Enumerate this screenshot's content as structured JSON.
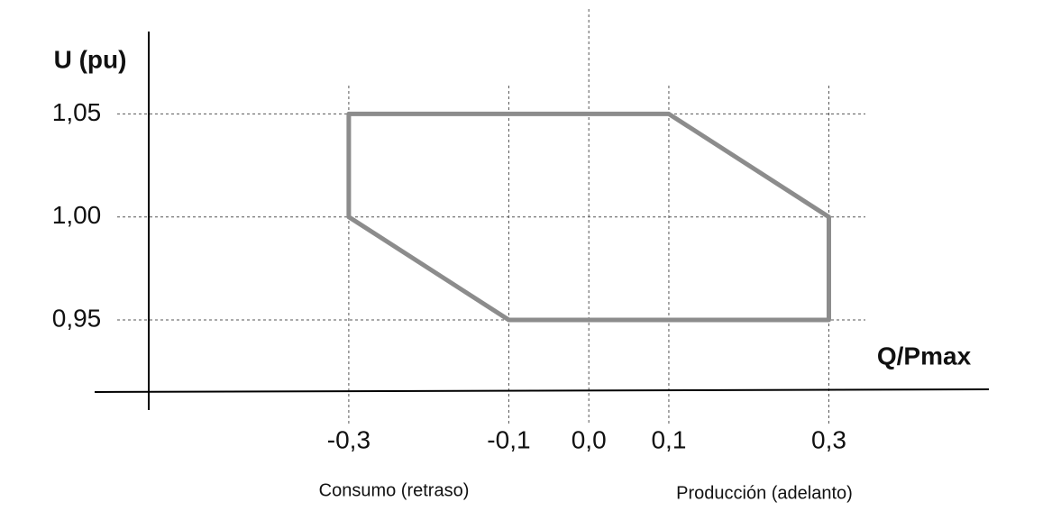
{
  "chart_data": {
    "type": "polygon",
    "ylabel": "U (pu)",
    "xlabel": "Q/Pmax",
    "annotations": [
      "Consumo (retraso)",
      "Producción (adelanto)"
    ],
    "x": [
      -0.3,
      0.1,
      0.3,
      0.3,
      -0.1,
      -0.3
    ],
    "y": [
      1.05,
      1.05,
      1.0,
      0.95,
      0.95,
      1.0
    ],
    "color": "#8c8c8c",
    "xlim": [
      -0.55,
      0.5
    ],
    "ylim": [
      0.915,
      1.09
    ],
    "xticks": [
      {
        "value": -0.3,
        "label": "-0,3"
      },
      {
        "value": -0.1,
        "label": "-0,1"
      },
      {
        "value": 0.0,
        "label": "0,0"
      },
      {
        "value": 0.1,
        "label": "0,1"
      },
      {
        "value": 0.3,
        "label": "0,3"
      }
    ],
    "yticks": [
      {
        "value": 0.95,
        "label": "0,95"
      },
      {
        "value": 1.0,
        "label": "1,00"
      },
      {
        "value": 1.05,
        "label": "1,05"
      }
    ],
    "grid": true
  }
}
